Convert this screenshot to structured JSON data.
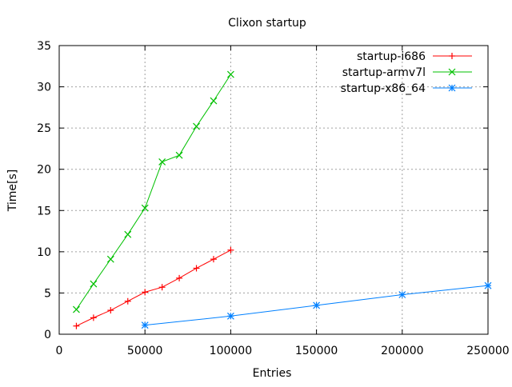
{
  "chart_data": {
    "type": "line",
    "title": "Clixon startup",
    "xlabel": "Entries",
    "ylabel": "Time[s]",
    "xlim": [
      0,
      250000
    ],
    "ylim": [
      0,
      35
    ],
    "xticks": [
      0,
      50000,
      100000,
      150000,
      200000,
      250000
    ],
    "yticks": [
      0,
      5,
      10,
      15,
      20,
      25,
      30,
      35
    ],
    "grid": true,
    "legend_position": "top-right",
    "series": [
      {
        "name": "startup-i686",
        "color": "#ff0000",
        "marker": "plus",
        "x": [
          10000,
          20000,
          30000,
          40000,
          50000,
          60000,
          70000,
          80000,
          90000,
          100000
        ],
        "y": [
          1.0,
          2.0,
          2.9,
          4.0,
          5.1,
          5.7,
          6.8,
          8.0,
          9.1,
          10.2
        ]
      },
      {
        "name": "startup-armv7l",
        "color": "#00c000",
        "marker": "cross",
        "x": [
          10000,
          20000,
          30000,
          40000,
          50000,
          60000,
          70000,
          80000,
          90000,
          100000
        ],
        "y": [
          3.0,
          6.1,
          9.1,
          12.1,
          15.3,
          20.9,
          21.7,
          25.2,
          28.3,
          31.5
        ]
      },
      {
        "name": "startup-x86_64",
        "color": "#0080ff",
        "marker": "star",
        "x": [
          50000,
          100000,
          150000,
          200000,
          250000
        ],
        "y": [
          1.1,
          2.2,
          3.5,
          4.8,
          5.9
        ]
      }
    ]
  }
}
